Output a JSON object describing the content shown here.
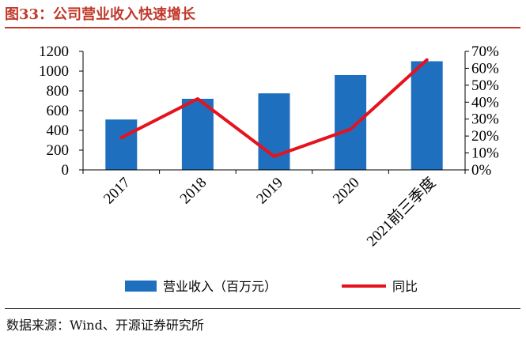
{
  "title": "图33：公司营业收入快速增长",
  "source": "数据来源：Wind、开源证券研究所",
  "colors": {
    "bar": "#1f6fbf",
    "line": "#e6121d",
    "title": "#c0392b"
  },
  "chart_data": {
    "type": "bar",
    "title": "图33：公司营业收入快速增长",
    "categories": [
      "2017",
      "2018",
      "2019",
      "2020",
      "2021前三季度"
    ],
    "series": [
      {
        "name": "营业收入（百万元）",
        "type": "bar",
        "axis": "left",
        "values": [
          510,
          720,
          775,
          960,
          1100
        ]
      },
      {
        "name": "同比",
        "type": "line",
        "axis": "right",
        "values": [
          0.19,
          0.42,
          0.08,
          0.24,
          0.65
        ]
      }
    ],
    "yleft": {
      "ylim": [
        0,
        1200
      ],
      "ticks": [
        "0",
        "200",
        "400",
        "600",
        "800",
        "1000",
        "1200"
      ]
    },
    "yright": {
      "ylim": [
        0,
        0.7
      ],
      "ticks": [
        "0%",
        "10%",
        "20%",
        "30%",
        "40%",
        "50%",
        "60%",
        "70%"
      ]
    },
    "legend": {
      "position": "bottom",
      "items": [
        "营业收入（百万元）",
        "同比"
      ]
    },
    "grid": false
  }
}
